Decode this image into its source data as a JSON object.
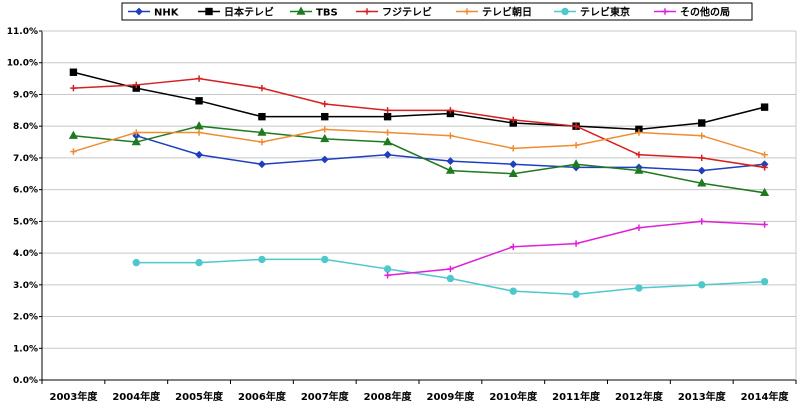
{
  "chart_data": {
    "type": "line",
    "title": "",
    "xlabel": "",
    "ylabel": "",
    "ylim": [
      0,
      11
    ],
    "ytick_labels": [
      "0.0%",
      "1.0%",
      "2.0%",
      "3.0%",
      "4.0%",
      "5.0%",
      "6.0%",
      "7.0%",
      "8.0%",
      "9.0%",
      "10.0%",
      "11.0%"
    ],
    "categories": [
      "2003年度",
      "2004年度",
      "2005年度",
      "2006年度",
      "2007年度",
      "2008年度",
      "2009年度",
      "2010年度",
      "2011年度",
      "2012年度",
      "2013年度",
      "2014年度"
    ],
    "grid": true,
    "legend_position": "top",
    "series": [
      {
        "name": "NHK",
        "color": "#1f3fbf",
        "marker": "diamond",
        "values": [
          null,
          7.7,
          7.1,
          6.8,
          6.95,
          7.1,
          6.9,
          6.8,
          6.7,
          6.7,
          6.6,
          6.8
        ]
      },
      {
        "name": "日本テレビ",
        "color": "#000000",
        "marker": "square",
        "values": [
          9.7,
          9.2,
          8.8,
          8.3,
          8.3,
          8.3,
          8.4,
          8.1,
          8.0,
          7.9,
          8.1,
          8.6
        ]
      },
      {
        "name": "TBS",
        "color": "#1e7a1e",
        "marker": "triangle",
        "values": [
          7.7,
          7.5,
          8.0,
          7.8,
          7.6,
          7.5,
          6.6,
          6.5,
          6.8,
          6.6,
          6.2,
          5.9
        ]
      },
      {
        "name": "フジテレビ",
        "color": "#d62020",
        "marker": "plus",
        "values": [
          9.2,
          9.3,
          9.5,
          9.2,
          8.7,
          8.5,
          8.5,
          8.2,
          8.0,
          7.1,
          7.0,
          6.7
        ]
      },
      {
        "name": "テレビ朝日",
        "color": "#f08c30",
        "marker": "plus",
        "values": [
          7.2,
          7.8,
          7.8,
          7.5,
          7.9,
          7.8,
          7.7,
          7.3,
          7.4,
          7.8,
          7.7,
          7.1
        ]
      },
      {
        "name": "テレビ東京",
        "color": "#4fc8cc",
        "marker": "circle",
        "values": [
          null,
          3.7,
          3.7,
          3.8,
          3.8,
          3.5,
          3.2,
          2.8,
          2.7,
          2.9,
          3.0,
          3.1
        ]
      },
      {
        "name": "その他の局",
        "color": "#e020d8",
        "marker": "plus",
        "values": [
          null,
          null,
          null,
          null,
          null,
          3.3,
          3.5,
          4.2,
          4.3,
          4.8,
          5.0,
          4.9
        ]
      }
    ]
  }
}
